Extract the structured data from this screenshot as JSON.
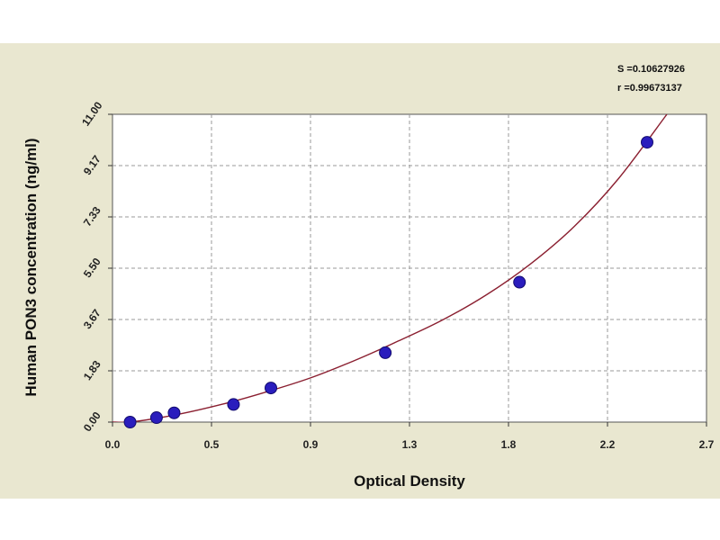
{
  "colors": {
    "figure_background": "#e9e7d0",
    "plot_background": "#ffffff",
    "curve": "#8b2031",
    "marker": "#2a1dbd",
    "marker_outline": "#120b6e",
    "grid": "#9a9a9a"
  },
  "chart_data": {
    "type": "scatter",
    "title": "",
    "xlabel": "Optical Density",
    "ylabel": "Human PON3 concentration (ng/ml)",
    "xlim": [
      0.0,
      2.7
    ],
    "ylim": [
      0.0,
      11.0
    ],
    "x_ticks": [
      "0.0",
      "0.5",
      "0.9",
      "1.3",
      "1.8",
      "2.2",
      "2.7"
    ],
    "y_ticks": [
      "0.00",
      "1.83",
      "3.67",
      "5.50",
      "7.33",
      "9.17",
      "11.00"
    ],
    "grid": "dashed",
    "fit_stats": [
      "S =0.10627926",
      "r =0.99673137"
    ],
    "series": [
      {
        "x": [
          0.08,
          0.2,
          0.28,
          0.55,
          0.72,
          1.24,
          1.85,
          2.43
        ],
        "y": [
          0.0,
          0.16,
          0.33,
          0.63,
          1.22,
          2.48,
          5.0,
          10.0
        ]
      }
    ],
    "fit_curve": {
      "x": [
        0.0,
        0.1,
        0.3,
        0.5,
        0.7,
        0.9,
        1.1,
        1.3,
        1.5,
        1.7,
        1.9,
        2.1,
        2.3,
        2.52
      ],
      "y": [
        0.0,
        0.02,
        0.28,
        0.64,
        1.08,
        1.58,
        2.2,
        2.9,
        3.65,
        4.55,
        5.65,
        7.0,
        8.7,
        11.0
      ]
    }
  }
}
